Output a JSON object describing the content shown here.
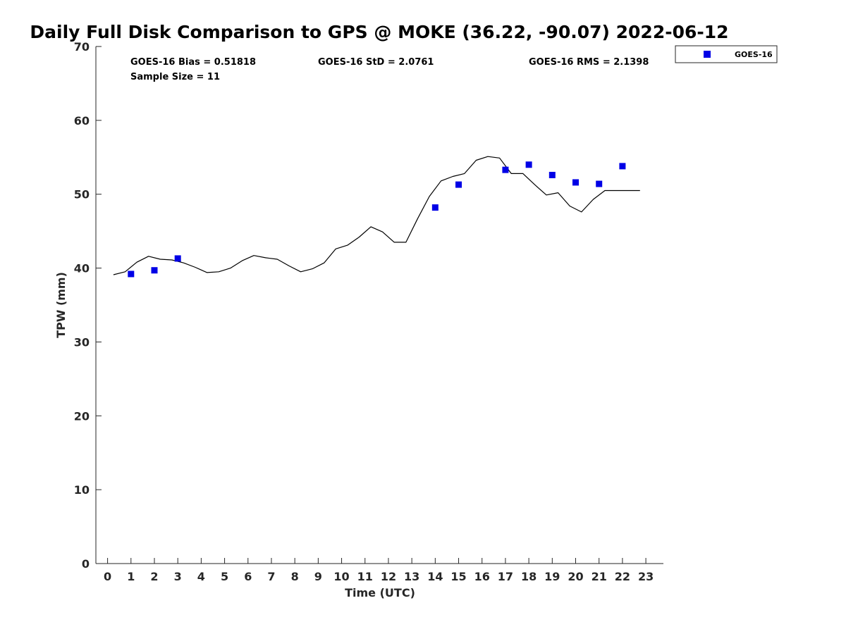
{
  "chart_data": {
    "type": "scatter",
    "title": "Daily Full Disk Comparison to GPS @ MOKE (36.22, -90.07) 2022-06-12",
    "xlabel": "Time (UTC)",
    "ylabel": "TPW (mm)",
    "xlim": [
      -0.5,
      23.75
    ],
    "ylim": [
      0,
      70
    ],
    "xticks": [
      0,
      1,
      2,
      3,
      4,
      5,
      6,
      7,
      8,
      9,
      10,
      11,
      12,
      13,
      14,
      15,
      16,
      17,
      18,
      19,
      20,
      21,
      22,
      23
    ],
    "yticks": [
      0,
      10,
      20,
      30,
      40,
      50,
      60,
      70
    ],
    "grid": false,
    "legend_position": "top-right, outside plot",
    "colors": {
      "goes16": "#0000e6",
      "gps": "#000000"
    },
    "stats": {
      "bias": "GOES-16 Bias = 0.51818",
      "std": "GOES-16 StD = 2.0761",
      "rms": "GOES-16 RMS = 2.1398",
      "sample": "Sample Size = 11"
    },
    "series": [
      {
        "name": "GOES-16",
        "type": "scatter",
        "marker": "square",
        "x": [
          1,
          2,
          3,
          14,
          15,
          17,
          18,
          19,
          20,
          21,
          22
        ],
        "y": [
          39.2,
          39.7,
          41.3,
          48.2,
          51.3,
          53.3,
          54.0,
          52.6,
          51.6,
          51.4,
          53.8
        ]
      },
      {
        "type": "line",
        "x": [
          0.25,
          0.75,
          1.25,
          1.75,
          2.25,
          2.75,
          3.25,
          3.75,
          4.25,
          4.75,
          5.25,
          5.75,
          6.25,
          6.75,
          7.25,
          7.75,
          8.25,
          8.75,
          9.25,
          9.75,
          10.25,
          10.75,
          11.25,
          11.75,
          12.25,
          12.75,
          13.25,
          13.75,
          14.25,
          14.75,
          15.25,
          15.75,
          16.25,
          16.75,
          17.25,
          17.75,
          18.25,
          18.75,
          19.25,
          19.75,
          20.25,
          20.75,
          21.25,
          21.75,
          22.25,
          22.75
        ],
        "y": [
          39.1,
          39.5,
          40.8,
          41.6,
          41.2,
          41.1,
          40.7,
          40.1,
          39.4,
          39.5,
          40.0,
          41.0,
          41.7,
          41.4,
          41.2,
          40.3,
          39.5,
          39.9,
          40.7,
          42.6,
          43.1,
          44.2,
          45.6,
          44.9,
          43.5,
          43.5,
          46.7,
          49.7,
          51.8,
          52.4,
          52.8,
          54.6,
          55.1,
          54.9,
          52.8,
          52.8,
          51.3,
          49.9,
          50.2,
          48.4,
          47.6,
          49.3,
          50.5,
          50.5,
          50.5,
          50.5
        ]
      }
    ]
  }
}
